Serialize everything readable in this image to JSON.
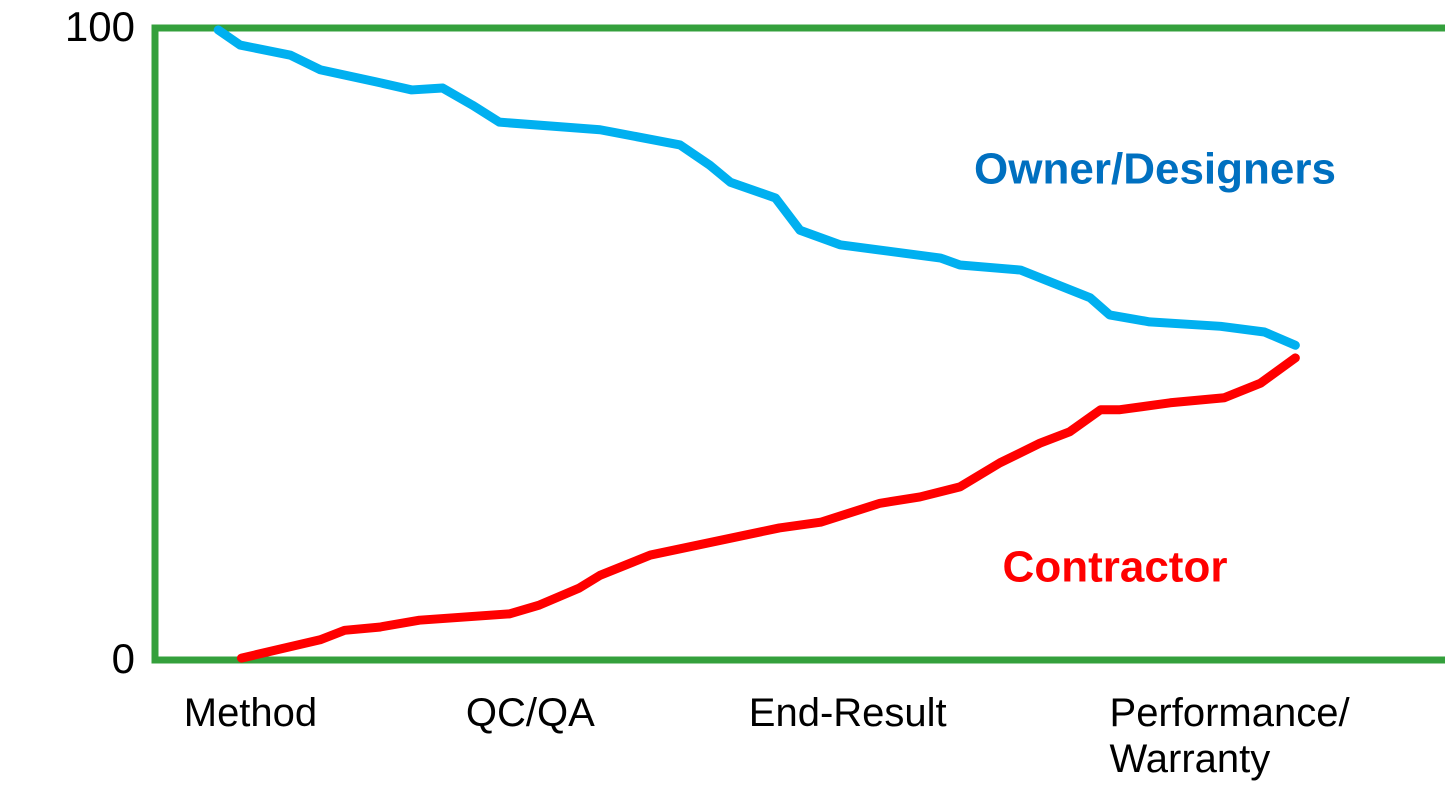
{
  "chart_data": {
    "type": "line",
    "xlim": [
      0,
      100
    ],
    "xticks": [
      {
        "value": 7.4,
        "label": "Method"
      },
      {
        "value": 29.1,
        "label": "QC/QA"
      },
      {
        "value": 53.7,
        "label": "End-Result"
      },
      {
        "value": 83.3,
        "label": "Performance/\nWarranty"
      }
    ],
    "ylim": [
      0,
      100
    ],
    "yticks": [
      0,
      100
    ],
    "grid": false,
    "frame_color": "#34a03c",
    "series": [
      {
        "name": "Owner/Designers",
        "color": "#00b0f0",
        "label_color": "#0070c0",
        "x": [
          4.9,
          6.6,
          10.5,
          12.8,
          17.1,
          19.9,
          22.3,
          24.6,
          26.7,
          34.5,
          40.7,
          43.0,
          44.6,
          48.1,
          50.0,
          53.1,
          60.9,
          62.4,
          67.1,
          72.5,
          74.0,
          77.1,
          82.6,
          86.0,
          88.4
        ],
        "values": [
          99.7,
          97.3,
          95.7,
          93.4,
          91.5,
          90.2,
          90.5,
          87.8,
          85.1,
          83.9,
          81.5,
          78.3,
          75.6,
          73.1,
          68.0,
          65.7,
          63.6,
          62.5,
          61.7,
          57.3,
          54.6,
          53.5,
          52.8,
          51.9,
          49.8
        ]
      },
      {
        "name": "Contractor",
        "color": "#ff0000",
        "label_color": "#ff0000",
        "x": [
          6.7,
          12.8,
          14.7,
          17.4,
          20.5,
          27.5,
          29.8,
          32.9,
          34.5,
          38.4,
          48.4,
          51.6,
          56.2,
          59.3,
          62.4,
          65.5,
          68.6,
          70.9,
          73.3,
          74.8,
          78.7,
          82.9,
          85.7,
          88.4
        ],
        "values": [
          0.3,
          3.2,
          4.7,
          5.2,
          6.3,
          7.3,
          8.7,
          11.4,
          13.4,
          16.6,
          20.9,
          21.8,
          24.8,
          25.8,
          27.4,
          31.2,
          34.3,
          36.1,
          39.6,
          39.6,
          40.7,
          41.5,
          43.8,
          47.8
        ]
      }
    ]
  }
}
